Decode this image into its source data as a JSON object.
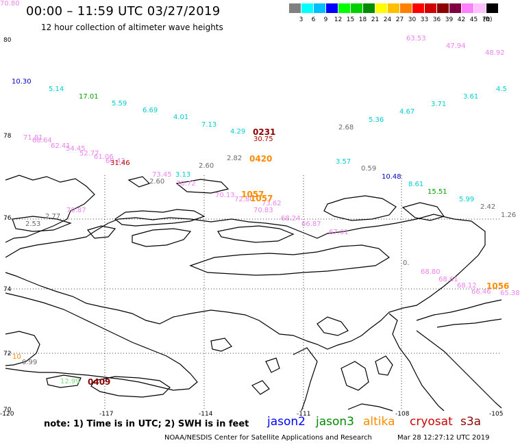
{
  "header": {
    "title": "00:00 – 11:59 UTC 03/27/2019",
    "subtitle": "12 hour collection of altimeter wave heights"
  },
  "scale": {
    "colors": [
      "#808080",
      "#00ffff",
      "#00bfff",
      "#0000ff",
      "#00ff00",
      "#00d000",
      "#008b00",
      "#ffff00",
      "#ffc000",
      "#ff8000",
      "#ff0000",
      "#d00000",
      "#8b0000",
      "#800040",
      "#ff80ff",
      "#ffc0ff",
      "#000000"
    ],
    "labels": [
      "3",
      "6",
      "9",
      "12",
      "15",
      "18",
      "21",
      "24",
      "27",
      "30",
      "33",
      "36",
      "39",
      "42",
      "45",
      "70"
    ],
    "unit": "(ft)"
  },
  "axes": {
    "lat_labels": [
      "80",
      "78",
      "76",
      "74",
      "72",
      "70"
    ],
    "lon_labels": [
      "-120",
      "-117",
      "-114",
      "-111",
      "-108",
      "-105"
    ]
  },
  "observations": [
    {
      "text": "63.53",
      "color": "#ee82ee"
    },
    {
      "text": "47.94",
      "color": "#ee82ee"
    },
    {
      "text": "48.92",
      "color": "#ee82ee"
    },
    {
      "text": "10.30",
      "color": "#0000cd"
    },
    {
      "text": "5.14",
      "color": "#00ced1"
    },
    {
      "text": "17.01",
      "color": "#00a000"
    },
    {
      "text": "5.59",
      "color": "#00ced1"
    },
    {
      "text": "6.69",
      "color": "#00ced1"
    },
    {
      "text": "4.01",
      "color": "#00ced1"
    },
    {
      "text": "7.13",
      "color": "#00ced1"
    },
    {
      "text": "4.29",
      "color": "#00ced1"
    },
    {
      "text": "2.68",
      "color": "#696969"
    },
    {
      "text": "5.36",
      "color": "#00ced1"
    },
    {
      "text": "4.67",
      "color": "#00ced1"
    },
    {
      "text": "3.71",
      "color": "#00ced1"
    },
    {
      "text": "3.61",
      "color": "#00ced1"
    },
    {
      "text": "4.5",
      "color": "#00ced1"
    },
    {
      "text": "30.75",
      "color": "#b00000"
    },
    {
      "text": "71.81",
      "color": "#ee82ee"
    },
    {
      "text": "68.64",
      "color": "#ee82ee"
    },
    {
      "text": "62.41",
      "color": "#ee82ee"
    },
    {
      "text": "54.45",
      "color": "#ee82ee"
    },
    {
      "text": "52.77",
      "color": "#ee82ee"
    },
    {
      "text": "61.06",
      "color": "#ee82ee"
    },
    {
      "text": "60.43",
      "color": "#ee82ee"
    },
    {
      "text": "31.46",
      "color": "#b00000"
    },
    {
      "text": "2.82",
      "color": "#696969"
    },
    {
      "text": "3.57",
      "color": "#00ced1"
    },
    {
      "text": "0.59",
      "color": "#696969"
    },
    {
      "text": "10.48",
      "color": "#0000cd"
    },
    {
      "text": "8.61",
      "color": "#00ced1"
    },
    {
      "text": "15.51",
      "color": "#00a000"
    },
    {
      "text": "5.99",
      "color": "#00ced1"
    },
    {
      "text": "2.42",
      "color": "#696969"
    },
    {
      "text": "2.60",
      "color": "#696969"
    },
    {
      "text": "73.45",
      "color": "#ee82ee"
    },
    {
      "text": "3.13",
      "color": "#00ced1"
    },
    {
      "text": "2.60",
      "color": "#696969"
    },
    {
      "text": "70.72",
      "color": "#ee82ee"
    },
    {
      "text": "70.13",
      "color": "#ee82ee"
    },
    {
      "text": "72.80",
      "color": "#ee82ee"
    },
    {
      "text": "73.62",
      "color": "#ee82ee"
    },
    {
      "text": "70.83",
      "color": "#ee82ee"
    },
    {
      "text": "68.24",
      "color": "#ee82ee"
    },
    {
      "text": "66.87",
      "color": "#ee82ee"
    },
    {
      "text": "67.01",
      "color": "#ee82ee"
    },
    {
      "text": "70.87",
      "color": "#ee82ee"
    },
    {
      "text": "2.77",
      "color": "#696969"
    },
    {
      "text": "2.53",
      "color": "#696969"
    },
    {
      "text": "1.26",
      "color": "#696969"
    },
    {
      "text": "0.",
      "color": "#696969"
    },
    {
      "text": "68.80",
      "color": "#ee82ee"
    },
    {
      "text": "68.61",
      "color": "#ee82ee"
    },
    {
      "text": "68.12",
      "color": "#ee82ee"
    },
    {
      "text": "66.46",
      "color": "#ee82ee"
    },
    {
      "text": "65.38",
      "color": "#ee82ee"
    },
    {
      "text": "10",
      "color": "#ff8c00"
    },
    {
      "text": "0.99",
      "color": "#696969"
    },
    {
      "text": "12.99",
      "color": "#7cdc7c"
    },
    {
      "text": "70.80",
      "color": "#ee82ee"
    }
  ],
  "passes": [
    {
      "text": "0231",
      "color": "#8b0000"
    },
    {
      "text": "0420",
      "color": "#ff8c00"
    },
    {
      "text": "1057",
      "color": "#ff8c00"
    },
    {
      "text": "1057",
      "color": "#ff8c00"
    },
    {
      "text": "1056",
      "color": "#ff8c00"
    },
    {
      "text": "0409",
      "color": "#8b0000"
    }
  ],
  "footer": {
    "note": "note: 1) Time is in UTC; 2) SWH is in feet",
    "legend": [
      {
        "label": "jason2",
        "color": "#0000ff"
      },
      {
        "label": "jason3",
        "color": "#008b00"
      },
      {
        "label": "altika",
        "color": "#ff8c00"
      },
      {
        "label": "cryosat",
        "color": "#cc0000"
      },
      {
        "label": "s3a",
        "color": "#8b0000"
      }
    ],
    "credit": "NOAA/NESDIS Center for Satellite Applications and Research",
    "timestamp": "Mar 28 12:27:12 UTC 2019"
  }
}
